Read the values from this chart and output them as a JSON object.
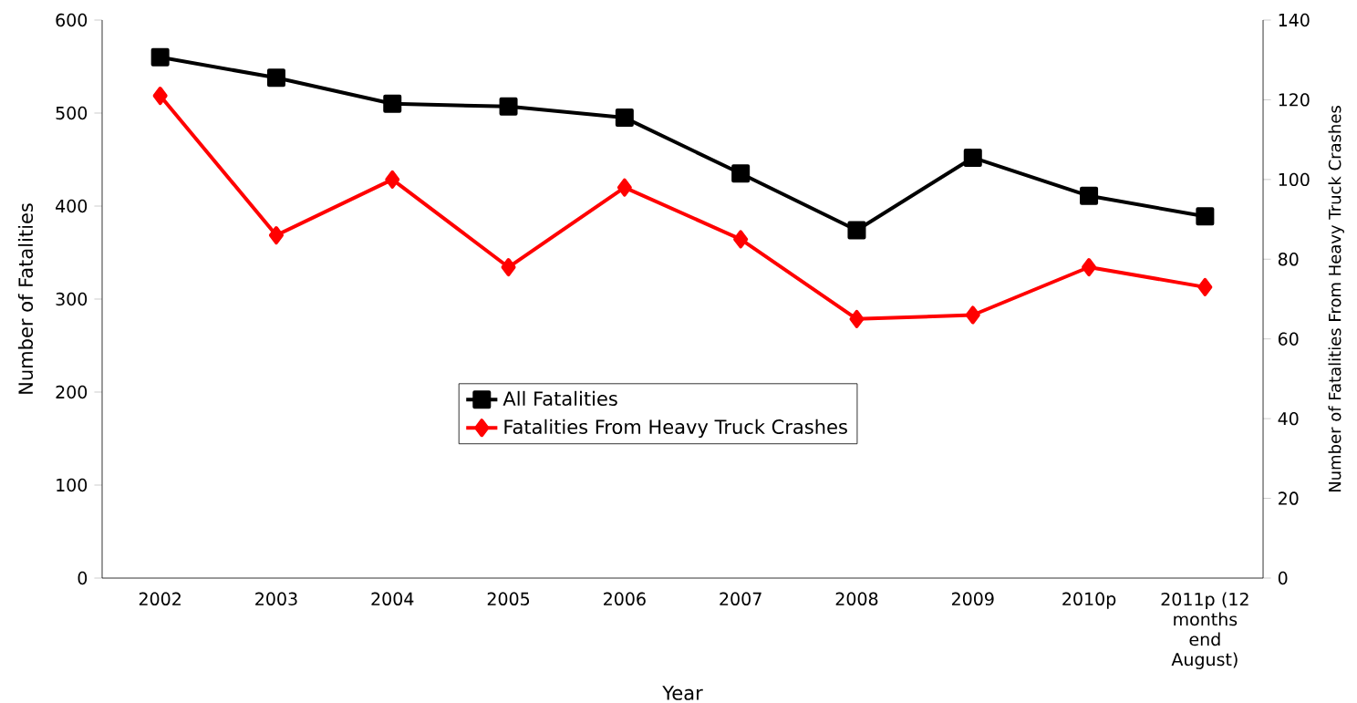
{
  "chart_data": {
    "type": "line",
    "xlabel": "Year",
    "ylabel": "Number of Fatalities",
    "y2label": "Number of Fatalities From Heavy Truck Crashes",
    "categories": [
      "2002",
      "2003",
      "2004",
      "2005",
      "2006",
      "2007",
      "2008",
      "2009",
      "2010p",
      "2011p (12 months end August)"
    ],
    "series": [
      {
        "name": "All Fatalities",
        "color": "#000000",
        "marker": "square",
        "values": [
          560,
          538,
          510,
          507,
          495,
          435,
          374,
          452,
          411,
          389
        ]
      },
      {
        "name": "Fatalities From Heavy Truck Crashes",
        "color": "#ff0000",
        "marker": "diamond",
        "axis": "y2",
        "values": [
          121,
          86,
          100,
          78,
          98,
          85,
          65,
          66,
          78,
          73
        ]
      }
    ],
    "ylim": [
      0,
      600
    ],
    "yticks": [
      0,
      100,
      200,
      300,
      400,
      500,
      600
    ],
    "y2lim": [
      0,
      140
    ],
    "y2ticks": [
      0,
      20,
      40,
      60,
      80,
      100,
      120,
      140
    ],
    "grid": false,
    "legend": "center"
  }
}
